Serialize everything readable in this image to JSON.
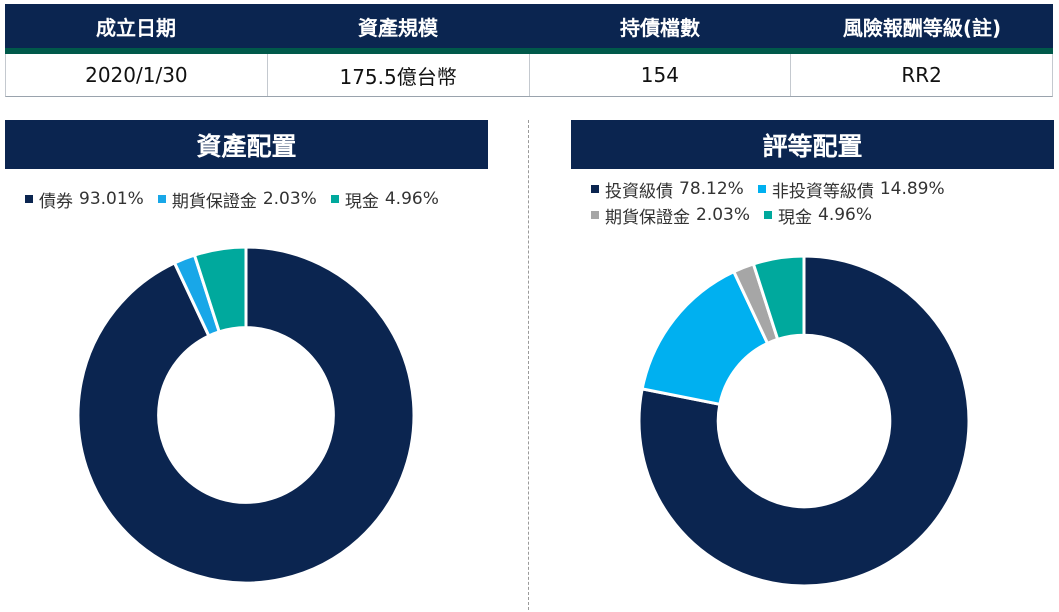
{
  "summary": {
    "headers": [
      "成立日期",
      "資產規模",
      "持債檔數",
      "風險報酬等級(註)"
    ],
    "values": [
      "2020/1/30",
      "175.5億台幣",
      "154",
      "RR2"
    ]
  },
  "colors": {
    "navy": "#0b2550",
    "green": "#00594a",
    "bond": "#0b2550",
    "futures": "#18a7e8",
    "cash": "#00a99d",
    "investment_grade": "#0b2550",
    "non_investment_grade": "#00b0f0",
    "futures_gray": "#a6a6a6"
  },
  "chart_data": [
    {
      "type": "pie",
      "title": "資產配置",
      "donut": true,
      "legend_position": "top",
      "slices": [
        {
          "name": "債券",
          "value": 93.01,
          "label": "93.01%",
          "color": "#0b2550"
        },
        {
          "name": "期貨保證金",
          "value": 2.03,
          "label": "2.03%",
          "color": "#18a7e8"
        },
        {
          "name": "現金",
          "value": 4.96,
          "label": "4.96%",
          "color": "#00a99d"
        }
      ]
    },
    {
      "type": "pie",
      "title": "評等配置",
      "donut": true,
      "legend_position": "top",
      "slices": [
        {
          "name": "投資級債",
          "value": 78.12,
          "label": "78.12%",
          "color": "#0b2550"
        },
        {
          "name": "非投資等級債",
          "value": 14.89,
          "label": "14.89%",
          "color": "#00b0f0"
        },
        {
          "name": "期貨保證金",
          "value": 2.03,
          "label": "2.03%",
          "color": "#a6a6a6"
        },
        {
          "name": "現金",
          "value": 4.96,
          "label": "4.96%",
          "color": "#00a99d"
        }
      ]
    }
  ]
}
